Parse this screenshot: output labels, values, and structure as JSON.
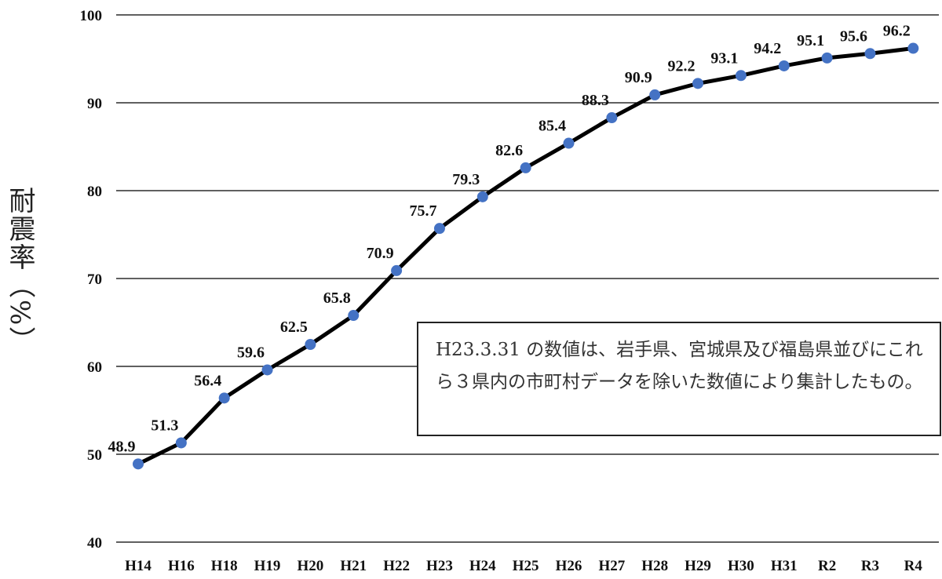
{
  "chart_data": {
    "type": "line",
    "ylabel": "耐震率（%）",
    "ylim": [
      40,
      100
    ],
    "yticks": [
      40,
      50,
      60,
      70,
      80,
      90,
      100
    ],
    "grid": true,
    "categories": [
      "H14",
      "H16",
      "H18",
      "H19",
      "H20",
      "H21",
      "H22",
      "H23",
      "H24",
      "H25",
      "H26",
      "H27",
      "H28",
      "H29",
      "H30",
      "H31",
      "R2",
      "R3",
      "R4"
    ],
    "series": [
      {
        "values": [
          48.9,
          51.3,
          56.4,
          59.6,
          62.5,
          65.8,
          70.9,
          75.7,
          79.3,
          82.6,
          85.4,
          88.3,
          90.9,
          92.2,
          93.1,
          94.2,
          95.1,
          95.6,
          96.2
        ]
      }
    ],
    "annotation": "H23.3.31 の数値は、岩手県、宮城県及び福島県並びにこれら３県内の市町村データを除いた数値により集計したもの。"
  },
  "colors": {
    "line": "#000000",
    "marker": "#4472C4",
    "grid": "#000000"
  }
}
